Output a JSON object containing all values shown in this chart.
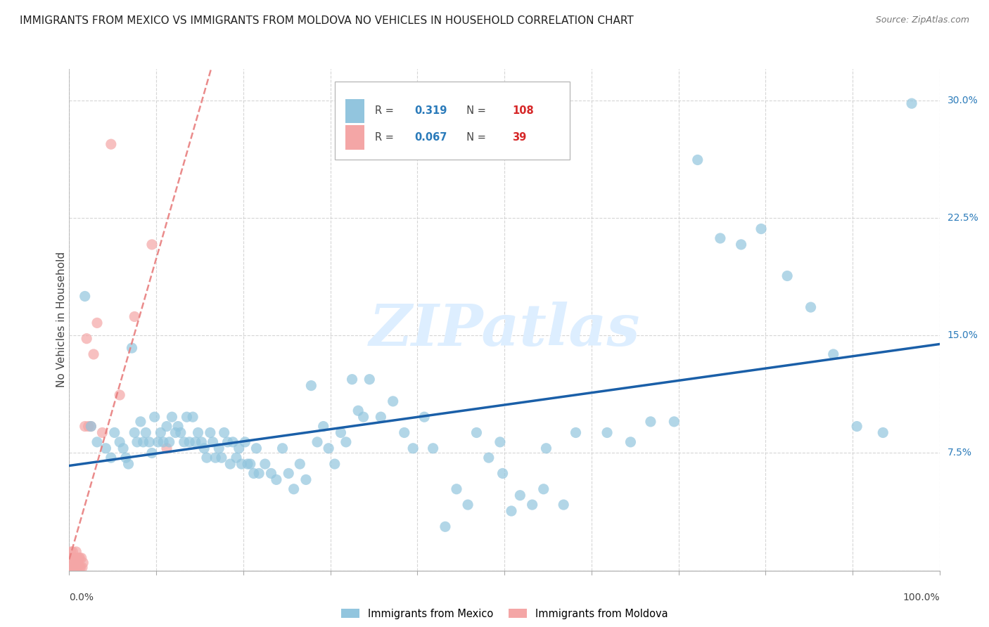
{
  "title": "IMMIGRANTS FROM MEXICO VS IMMIGRANTS FROM MOLDOVA NO VEHICLES IN HOUSEHOLD CORRELATION CHART",
  "source": "Source: ZipAtlas.com",
  "ylabel": "No Vehicles in Household",
  "xlim": [
    0,
    1.0
  ],
  "ylim": [
    0,
    0.32
  ],
  "y_ticks": [
    0.0,
    0.075,
    0.15,
    0.225,
    0.3
  ],
  "y_tick_labels": [
    "",
    "7.5%",
    "15.0%",
    "22.5%",
    "30.0%"
  ],
  "x_ticks": [
    0.0,
    0.1,
    0.2,
    0.3,
    0.4,
    0.5,
    0.6,
    0.7,
    0.8,
    0.9,
    1.0
  ],
  "mexico_R": "0.319",
  "mexico_N": "108",
  "moldova_R": "0.067",
  "moldova_N": "39",
  "mexico_color": "#92c5de",
  "moldova_color": "#f4a6a6",
  "mexico_line_color": "#1a5fa8",
  "moldova_line_color": "#e87e7e",
  "watermark": "ZIPatlas",
  "watermark_color": "#ddeeff",
  "mexico_x": [
    0.018,
    0.025,
    0.032,
    0.042,
    0.048,
    0.052,
    0.058,
    0.062,
    0.065,
    0.068,
    0.072,
    0.075,
    0.078,
    0.082,
    0.085,
    0.088,
    0.092,
    0.095,
    0.098,
    0.102,
    0.105,
    0.108,
    0.112,
    0.115,
    0.118,
    0.122,
    0.125,
    0.128,
    0.132,
    0.135,
    0.138,
    0.142,
    0.145,
    0.148,
    0.152,
    0.155,
    0.158,
    0.162,
    0.165,
    0.168,
    0.172,
    0.175,
    0.178,
    0.182,
    0.185,
    0.188,
    0.192,
    0.195,
    0.198,
    0.202,
    0.205,
    0.208,
    0.212,
    0.215,
    0.218,
    0.225,
    0.232,
    0.238,
    0.245,
    0.252,
    0.258,
    0.265,
    0.272,
    0.278,
    0.285,
    0.292,
    0.298,
    0.305,
    0.312,
    0.318,
    0.325,
    0.332,
    0.338,
    0.345,
    0.358,
    0.372,
    0.385,
    0.395,
    0.408,
    0.418,
    0.432,
    0.445,
    0.458,
    0.468,
    0.482,
    0.495,
    0.508,
    0.518,
    0.532,
    0.548,
    0.498,
    0.545,
    0.568,
    0.582,
    0.618,
    0.645,
    0.668,
    0.695,
    0.722,
    0.748,
    0.772,
    0.795,
    0.825,
    0.852,
    0.878,
    0.905,
    0.935,
    0.968
  ],
  "mexico_y": [
    0.175,
    0.092,
    0.082,
    0.078,
    0.072,
    0.088,
    0.082,
    0.078,
    0.072,
    0.068,
    0.142,
    0.088,
    0.082,
    0.095,
    0.082,
    0.088,
    0.082,
    0.075,
    0.098,
    0.082,
    0.088,
    0.082,
    0.092,
    0.082,
    0.098,
    0.088,
    0.092,
    0.088,
    0.082,
    0.098,
    0.082,
    0.098,
    0.082,
    0.088,
    0.082,
    0.078,
    0.072,
    0.088,
    0.082,
    0.072,
    0.078,
    0.072,
    0.088,
    0.082,
    0.068,
    0.082,
    0.072,
    0.078,
    0.068,
    0.082,
    0.068,
    0.068,
    0.062,
    0.078,
    0.062,
    0.068,
    0.062,
    0.058,
    0.078,
    0.062,
    0.052,
    0.068,
    0.058,
    0.118,
    0.082,
    0.092,
    0.078,
    0.068,
    0.088,
    0.082,
    0.122,
    0.102,
    0.098,
    0.122,
    0.098,
    0.108,
    0.088,
    0.078,
    0.098,
    0.078,
    0.028,
    0.052,
    0.042,
    0.088,
    0.072,
    0.082,
    0.038,
    0.048,
    0.042,
    0.078,
    0.062,
    0.052,
    0.042,
    0.088,
    0.088,
    0.082,
    0.095,
    0.095,
    0.262,
    0.212,
    0.208,
    0.218,
    0.188,
    0.168,
    0.138,
    0.092,
    0.088,
    0.298
  ],
  "moldova_x": [
    0.002,
    0.002,
    0.003,
    0.003,
    0.004,
    0.004,
    0.004,
    0.005,
    0.005,
    0.006,
    0.006,
    0.007,
    0.007,
    0.008,
    0.008,
    0.008,
    0.009,
    0.009,
    0.01,
    0.01,
    0.011,
    0.012,
    0.012,
    0.013,
    0.014,
    0.015,
    0.016,
    0.018,
    0.02,
    0.022,
    0.025,
    0.028,
    0.032,
    0.038,
    0.048,
    0.058,
    0.075,
    0.095,
    0.112
  ],
  "moldova_y": [
    0.002,
    0.012,
    0.002,
    0.008,
    0.002,
    0.005,
    0.012,
    0.002,
    0.008,
    0.002,
    0.008,
    0.002,
    0.008,
    0.002,
    0.005,
    0.012,
    0.002,
    0.008,
    0.002,
    0.005,
    0.008,
    0.002,
    0.008,
    0.002,
    0.008,
    0.002,
    0.005,
    0.092,
    0.148,
    0.092,
    0.092,
    0.138,
    0.158,
    0.088,
    0.272,
    0.112,
    0.162,
    0.208,
    0.078
  ]
}
